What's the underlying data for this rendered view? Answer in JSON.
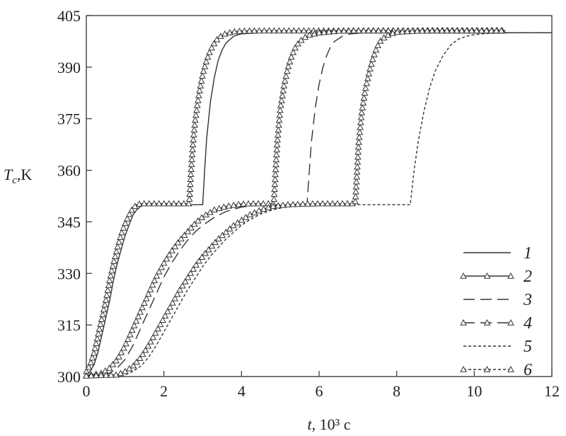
{
  "chart_data": {
    "type": "line",
    "title": "",
    "xlabel": "t, 10³ с",
    "xlabel_var": "t",
    "xlabel_unit": ", 10³ с",
    "ylabel": "Tc,K",
    "ylabel_var": "T",
    "ylabel_sub": "c",
    "ylabel_unit": ",K",
    "xlim": [
      0,
      12
    ],
    "ylim": [
      300,
      405
    ],
    "xticks": [
      0,
      2,
      4,
      6,
      8,
      10,
      12
    ],
    "yticks": [
      300,
      315,
      330,
      345,
      360,
      375,
      390,
      405
    ],
    "grid": false,
    "legend_position": "bottom-right",
    "series": [
      {
        "name": "1",
        "style": "solid",
        "markers": false,
        "x": [
          0.0,
          0.1,
          0.2,
          0.3,
          0.4,
          0.5,
          0.6,
          0.7,
          0.8,
          0.9,
          1.0,
          1.1,
          1.2,
          1.3,
          1.4,
          1.5,
          1.6,
          2.0,
          2.5,
          3.0,
          3.01,
          3.05,
          3.1,
          3.2,
          3.3,
          3.4,
          3.5,
          3.6,
          3.8,
          4.0,
          4.5,
          6,
          8,
          10,
          12
        ],
        "y": [
          300.5,
          301.5,
          303.5,
          307,
          312,
          317,
          322,
          328,
          333,
          337,
          341,
          344,
          347,
          348.5,
          349.5,
          350,
          350,
          350,
          350,
          350,
          352,
          360,
          369,
          380,
          387,
          392,
          395,
          397,
          399,
          399.7,
          400,
          400,
          400,
          400,
          400
        ]
      },
      {
        "name": "2",
        "style": "solid",
        "markers": true,
        "x": [
          0.0,
          0.1,
          0.2,
          0.3,
          0.4,
          0.5,
          0.6,
          0.7,
          0.8,
          0.9,
          1.0,
          1.1,
          1.2,
          1.3,
          1.4,
          1.6,
          2.0,
          2.5,
          2.65,
          2.66,
          2.7,
          2.75,
          2.8,
          2.9,
          3.0,
          3.1,
          3.2,
          3.3,
          3.4,
          3.5,
          3.6,
          3.8,
          4.0,
          4.5,
          5,
          6,
          7,
          8,
          9,
          10,
          10.8
        ],
        "y": [
          301.5,
          303.5,
          307,
          312,
          317,
          322,
          328,
          333,
          337.5,
          341.5,
          344.5,
          347,
          349,
          350,
          350.3,
          350.3,
          350.3,
          350.3,
          350.3,
          352,
          360,
          368,
          374,
          382,
          388,
          392,
          395,
          397,
          398.5,
          399.3,
          399.8,
          400.3,
          400.5,
          400.6,
          400.6,
          400.6,
          400.6,
          400.6,
          400.6,
          400.6,
          400.6
        ]
      },
      {
        "name": "3",
        "style": "dashed",
        "markers": false,
        "x": [
          0.0,
          0.4,
          0.6,
          0.8,
          1.0,
          1.2,
          1.4,
          1.6,
          1.8,
          2.0,
          2.2,
          2.4,
          2.6,
          2.8,
          3.0,
          3.3,
          3.6,
          4.0,
          4.4,
          4.8,
          5.2,
          5.69,
          5.7,
          5.75,
          5.8,
          5.9,
          6.0,
          6.1,
          6.2,
          6.3,
          6.4,
          6.6,
          6.8,
          7.2,
          8,
          10,
          12
        ],
        "y": [
          300,
          300,
          301,
          302.5,
          305,
          309,
          314,
          319,
          324,
          329,
          333,
          336.5,
          339.5,
          342,
          344,
          346.3,
          348,
          349.3,
          349.8,
          350,
          350,
          350,
          352,
          360,
          368,
          378,
          385,
          390,
          393.5,
          396,
          397.5,
          399,
          399.7,
          400,
          400,
          400,
          400
        ]
      },
      {
        "name": "4",
        "style": "dashed",
        "markers": true,
        "x": [
          0.0,
          0.4,
          0.6,
          0.8,
          1.0,
          1.2,
          1.4,
          1.6,
          1.8,
          2.0,
          2.2,
          2.4,
          2.6,
          2.8,
          3.0,
          3.3,
          3.6,
          4.0,
          4.3,
          4.6,
          4.83,
          4.84,
          4.88,
          4.92,
          5.0,
          5.1,
          5.2,
          5.3,
          5.4,
          5.5,
          5.7,
          6.0,
          6.5,
          7,
          8,
          9,
          10,
          10.8
        ],
        "y": [
          300.3,
          301,
          302.5,
          305,
          309,
          314,
          319,
          324,
          329,
          333,
          336.5,
          339.5,
          342,
          344.5,
          346.5,
          348.5,
          349.5,
          350.2,
          350.3,
          350.3,
          350.3,
          352,
          360,
          368,
          378,
          385,
          390,
          393.5,
          396,
          397.5,
          399.2,
          400,
          400.5,
          400.6,
          400.6,
          400.6,
          400.6,
          400.6
        ]
      },
      {
        "name": "5",
        "style": "dotted",
        "markers": false,
        "x": [
          0.0,
          0.8,
          1.0,
          1.2,
          1.4,
          1.6,
          1.8,
          2.0,
          2.2,
          2.4,
          2.6,
          2.8,
          3.0,
          3.2,
          3.4,
          3.6,
          3.8,
          4.0,
          4.2,
          4.5,
          4.8,
          5.2,
          5.6,
          6.0,
          7.0,
          8.35,
          8.37,
          8.45,
          8.55,
          8.7,
          8.85,
          9.0,
          9.2,
          9.4,
          9.6,
          9.9,
          10.3,
          11,
          12
        ],
        "y": [
          300,
          300,
          300.5,
          301.5,
          303,
          305.5,
          309,
          313,
          317,
          321,
          325,
          328.5,
          332,
          335,
          337.5,
          340,
          342,
          344,
          345.5,
          347.3,
          348.5,
          349.5,
          349.9,
          350,
          350,
          350,
          352,
          360,
          368,
          377,
          384,
          389,
          393.5,
          396.5,
          398.2,
          399.3,
          399.8,
          400,
          400
        ]
      },
      {
        "name": "6",
        "style": "dotted",
        "markers": true,
        "x": [
          0.0,
          0.8,
          1.0,
          1.2,
          1.4,
          1.6,
          1.8,
          2.0,
          2.2,
          2.4,
          2.6,
          2.8,
          3.0,
          3.2,
          3.4,
          3.6,
          3.8,
          4.0,
          4.2,
          4.5,
          4.8,
          5.2,
          5.6,
          6.0,
          6.5,
          6.93,
          6.94,
          6.98,
          7.02,
          7.1,
          7.2,
          7.3,
          7.4,
          7.5,
          7.6,
          7.8,
          8.0,
          8.5,
          9,
          10,
          10.8
        ],
        "y": [
          300.2,
          300.5,
          301.5,
          303,
          305.5,
          309,
          313,
          317,
          321,
          325,
          328.5,
          332,
          335,
          337.5,
          340,
          342,
          344,
          345.5,
          347,
          348.5,
          349.5,
          350,
          350.2,
          350.3,
          350.3,
          350.3,
          352,
          360,
          368,
          377,
          384,
          389,
          393,
          396,
          398,
          399.5,
          400.2,
          400.5,
          400.6,
          400.6,
          400.6
        ]
      }
    ]
  }
}
